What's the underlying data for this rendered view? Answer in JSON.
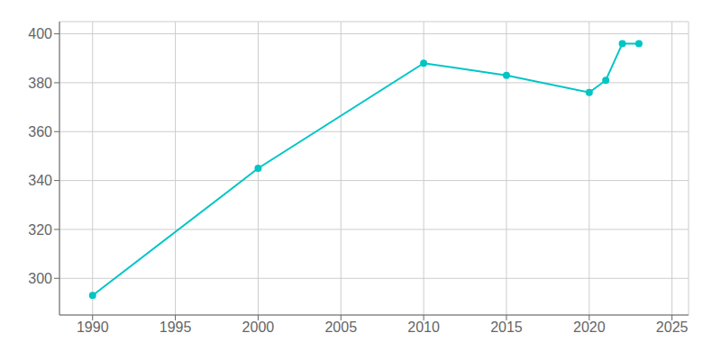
{
  "chart_data": {
    "type": "line",
    "x": [
      1990,
      2000,
      2010,
      2015,
      2020,
      2021,
      2022,
      2023
    ],
    "values": [
      293,
      345,
      388,
      383,
      376,
      381,
      396,
      396
    ],
    "color": "#00c5c5",
    "marker": "circle",
    "xlim": [
      1988,
      2026
    ],
    "ylim": [
      285,
      405
    ],
    "xticks": [
      1990,
      1995,
      2000,
      2005,
      2010,
      2015,
      2020,
      2025
    ],
    "yticks": [
      300,
      320,
      340,
      360,
      380,
      400
    ],
    "grid": true
  }
}
